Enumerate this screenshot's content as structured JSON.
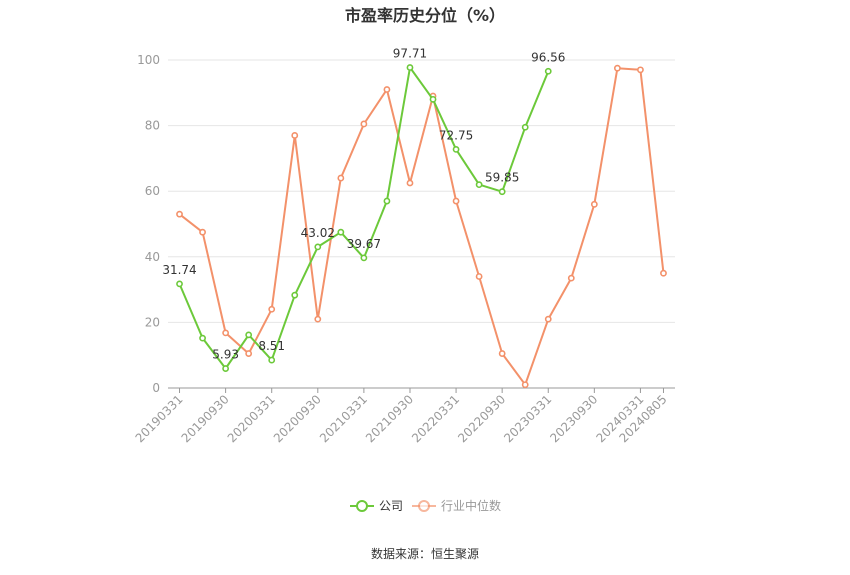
{
  "chart_data": {
    "type": "line",
    "title": "市盈率历史分位（%）",
    "source": "数据来源：恒生聚源",
    "ylim": [
      0,
      100
    ],
    "yticks": [
      0,
      20,
      40,
      60,
      80,
      100
    ],
    "grid": true,
    "legend_position": "bottom",
    "x_labels": [
      "20190331",
      "20190930",
      "20200331",
      "20200930",
      "20210331",
      "20210930",
      "20220331",
      "20220930",
      "20230331",
      "20230930",
      "20240331",
      "20240805"
    ],
    "x": [
      "20190331",
      "20190630",
      "20190930",
      "20191231",
      "20200331",
      "20200630",
      "20200930",
      "20201231",
      "20210331",
      "20210630",
      "20210930",
      "20211231",
      "20220331",
      "20220630",
      "20220930",
      "20221231",
      "20230331",
      "20230630",
      "20230930",
      "20231231",
      "20240331",
      "20240805"
    ],
    "series": [
      {
        "name": "公司",
        "color": "#6cc93a",
        "values": [
          31.74,
          15.2,
          5.93,
          16.2,
          8.51,
          28.3,
          43.02,
          47.5,
          39.67,
          57.0,
          97.71,
          88.0,
          72.75,
          62.0,
          59.85,
          79.5,
          96.56,
          null,
          null,
          null,
          null,
          null
        ],
        "labels": {
          "0": "31.74",
          "2": "5.93",
          "4": "8.51",
          "6": "43.02",
          "8": "39.67",
          "10": "97.71",
          "12": "72.75",
          "14": "59.85",
          "16": "96.56"
        }
      },
      {
        "name": "行业中位数",
        "color": "#f3916a",
        "values": [
          53.0,
          47.5,
          16.8,
          10.5,
          24.0,
          77.0,
          21.0,
          64.0,
          80.5,
          91.0,
          62.5,
          89.0,
          57.0,
          34.0,
          10.5,
          1.0,
          21.0,
          33.5,
          56.0,
          97.5,
          97.0,
          35.0
        ]
      }
    ]
  }
}
